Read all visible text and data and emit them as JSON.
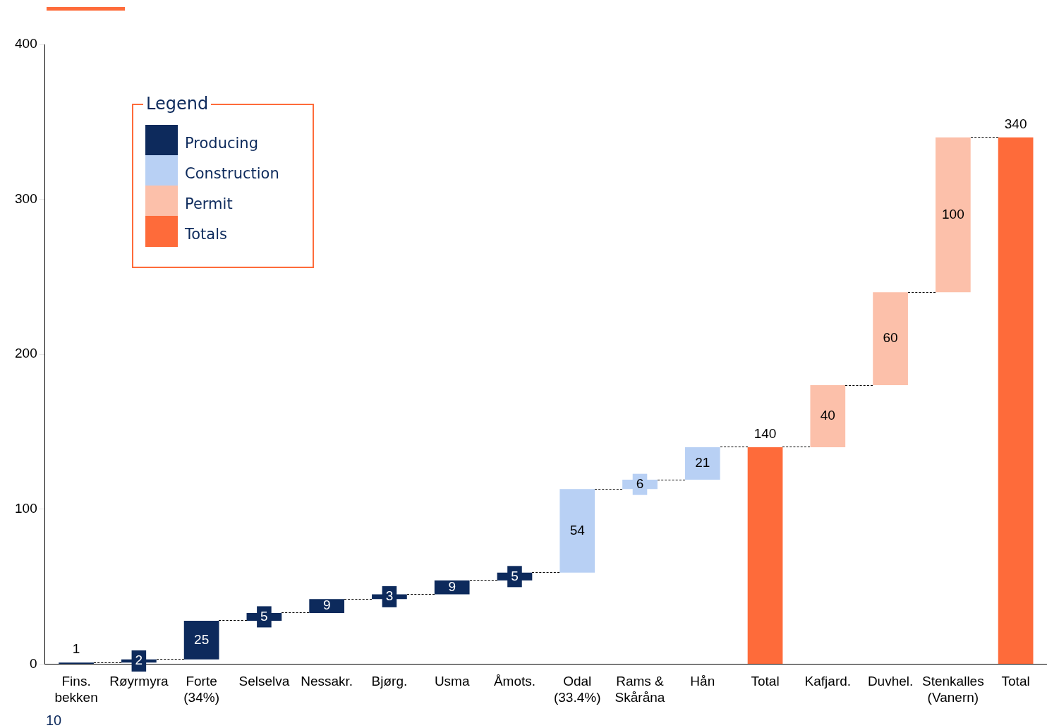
{
  "chart_data": {
    "type": "bar",
    "categories": [
      "Fins.\nbekken",
      "Røyrmyra",
      "Forte\n(34%)",
      "Selselva",
      "Nessakr.",
      "Bjørg.",
      "Usma",
      "Åmots.",
      "Odal\n(33.4%)",
      "Rams &\nSkåråna",
      "Hån",
      "Total",
      "Kafjard.",
      "Duvhel.",
      "Stenkalles\n(Vanern)",
      "Total"
    ],
    "series": [
      {
        "name": "Producing",
        "color": "#0d2a5c",
        "values": [
          1,
          2,
          25,
          5,
          9,
          3,
          9,
          5,
          null,
          null,
          null,
          null,
          null,
          null,
          null,
          null
        ],
        "base": [
          0,
          1,
          3,
          28,
          33,
          42,
          45,
          54,
          null,
          null,
          null,
          null,
          null,
          null,
          null,
          null
        ]
      },
      {
        "name": "Construction",
        "color": "#b8d0f4",
        "values": [
          null,
          null,
          null,
          null,
          null,
          null,
          null,
          null,
          54,
          6,
          21,
          null,
          null,
          null,
          null,
          null
        ],
        "base": [
          null,
          null,
          null,
          null,
          null,
          null,
          null,
          null,
          59,
          113,
          119,
          null,
          null,
          null,
          null,
          null
        ]
      },
      {
        "name": "Permit",
        "color": "#fcc0aa",
        "values": [
          null,
          null,
          null,
          null,
          null,
          null,
          null,
          null,
          null,
          null,
          null,
          null,
          40,
          60,
          100,
          null
        ],
        "base": [
          null,
          null,
          null,
          null,
          null,
          null,
          null,
          null,
          null,
          null,
          null,
          null,
          140,
          180,
          240,
          null
        ]
      },
      {
        "name": "Totals",
        "color": "#fe6b3a",
        "values": [
          null,
          null,
          null,
          null,
          null,
          null,
          null,
          null,
          null,
          null,
          null,
          140,
          null,
          null,
          null,
          340
        ],
        "base": [
          null,
          null,
          null,
          null,
          null,
          null,
          null,
          null,
          null,
          null,
          null,
          0,
          null,
          null,
          null,
          0
        ]
      }
    ],
    "ylim": [
      0,
      400
    ],
    "yticks": [
      0,
      100,
      200,
      300,
      400
    ],
    "grid": false,
    "legend": "top left",
    "legend_title": "Legend",
    "data_labels": true,
    "annotations": [
      "10"
    ]
  }
}
